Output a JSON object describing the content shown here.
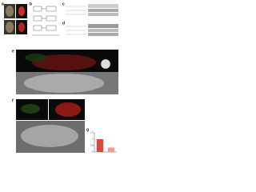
{
  "panels": [
    "a",
    "b",
    "c",
    "d",
    "e",
    "f",
    "g"
  ],
  "chart": {
    "type": "bar",
    "values": [
      1,
      0.35
    ],
    "colors": [
      "#d94a3a",
      "#e8a090"
    ],
    "ylim": [
      0,
      1.5
    ],
    "yticks": [
      0,
      0.5,
      1,
      1.5
    ]
  }
}
